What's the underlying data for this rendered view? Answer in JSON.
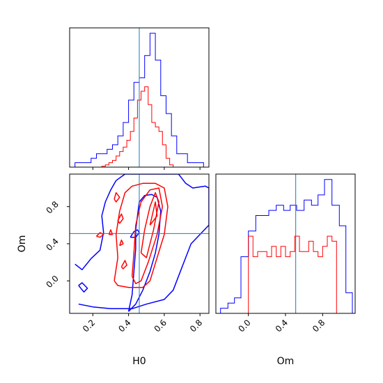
{
  "chart_data": {
    "type": "corner",
    "parameters": [
      "H0",
      "Om"
    ],
    "truth": {
      "H0": 0.46,
      "Om": 0.51
    },
    "colors": {
      "series_a": "#0000ff",
      "series_b": "#ff0000",
      "truth_line": "#1f77b4"
    },
    "panels": {
      "H0_hist": {
        "xlim": [
          0.07,
          0.85
        ],
        "ticks": [
          0.2,
          0.4,
          0.6,
          0.8
        ],
        "bin_edges": [
          0.07,
          0.1,
          0.13,
          0.16,
          0.19,
          0.22,
          0.25,
          0.28,
          0.31,
          0.34,
          0.37,
          0.4,
          0.43,
          0.46,
          0.49,
          0.52,
          0.55,
          0.58,
          0.61,
          0.64,
          0.67,
          0.7,
          0.73,
          0.76,
          0.79,
          0.82,
          0.85
        ],
        "series_a_counts": [
          0,
          1,
          1,
          1,
          2,
          3,
          3,
          4,
          5,
          7,
          10,
          15,
          19,
          20,
          25,
          30,
          24,
          16,
          12,
          7,
          3,
          3,
          1,
          1,
          1,
          0
        ],
        "bin_edges_b": [
          0.25,
          0.27,
          0.29,
          0.31,
          0.33,
          0.35,
          0.37,
          0.39,
          0.41,
          0.43,
          0.45,
          0.47,
          0.49,
          0.51,
          0.53,
          0.55,
          0.57,
          0.59,
          0.61,
          0.63,
          0.65
        ],
        "series_b_counts": [
          0.2,
          0.5,
          1,
          1.5,
          2.5,
          3.5,
          4.5,
          6,
          8,
          11,
          15,
          17,
          18,
          14,
          10,
          9,
          8,
          5,
          2,
          0.5
        ]
      },
      "Om_hist": {
        "xlim": [
          -0.35,
          1.15
        ],
        "ticks": [
          0.0,
          0.4,
          0.8
        ],
        "bin_edges": [
          -0.3,
          -0.22,
          -0.15,
          -0.08,
          0.0,
          0.08,
          0.15,
          0.22,
          0.3,
          0.38,
          0.45,
          0.52,
          0.6,
          0.68,
          0.75,
          0.82,
          0.9,
          0.98,
          1.05,
          1.12
        ],
        "series_a_counts": [
          1,
          2,
          3,
          11,
          16,
          19,
          19,
          20,
          21,
          20,
          21,
          20,
          22,
          21,
          23,
          26,
          21,
          17,
          4
        ],
        "bin_edges_b": [
          0.0,
          0.05,
          0.1,
          0.15,
          0.2,
          0.25,
          0.3,
          0.35,
          0.4,
          0.45,
          0.5,
          0.55,
          0.6,
          0.65,
          0.7,
          0.75,
          0.8,
          0.85,
          0.9,
          0.95,
          1.0
        ],
        "series_b_counts": [
          15,
          11,
          12,
          12,
          11,
          13,
          11,
          13,
          11,
          12,
          15,
          12,
          12,
          14,
          12,
          11,
          13,
          15,
          14,
          0
        ]
      },
      "H0_Om_contours": {
        "xlim": [
          0.07,
          0.85
        ],
        "ylim": [
          -0.35,
          1.15
        ],
        "xticks": [
          0.2,
          0.4,
          0.6,
          0.8
        ],
        "yticks": [
          0.0,
          0.4,
          0.8
        ],
        "series_a_levels": [
          [
            [
              0.4,
              -0.33
            ],
            [
              0.42,
              -0.15
            ],
            [
              0.43,
              0.1
            ],
            [
              0.44,
              0.35
            ],
            [
              0.44,
              0.55
            ],
            [
              0.45,
              0.7
            ],
            [
              0.46,
              0.85
            ],
            [
              0.49,
              0.92
            ],
            [
              0.53,
              0.93
            ],
            [
              0.56,
              0.9
            ],
            [
              0.58,
              0.75
            ],
            [
              0.57,
              0.5
            ],
            [
              0.55,
              0.3
            ],
            [
              0.52,
              0.1
            ],
            [
              0.48,
              -0.1
            ],
            [
              0.44,
              -0.25
            ],
            [
              0.4,
              -0.33
            ]
          ],
          [
            [
              0.1,
              0.18
            ],
            [
              0.14,
              0.12
            ],
            [
              0.19,
              0.24
            ],
            [
              0.24,
              0.33
            ],
            [
              0.26,
              0.52
            ],
            [
              0.25,
              0.7
            ],
            [
              0.27,
              0.85
            ],
            [
              0.3,
              0.98
            ],
            [
              0.33,
              1.08
            ],
            [
              0.38,
              1.15
            ],
            [
              0.68,
              1.15
            ],
            [
              0.72,
              1.05
            ],
            [
              0.76,
              1.0
            ],
            [
              0.83,
              1.02
            ],
            [
              0.85,
              1.0
            ],
            [
              0.85,
              0.6
            ],
            [
              0.75,
              0.4
            ],
            [
              0.7,
              0.15
            ],
            [
              0.65,
              -0.1
            ],
            [
              0.6,
              -0.2
            ],
            [
              0.5,
              -0.25
            ],
            [
              0.42,
              -0.3
            ],
            [
              0.3,
              -0.3
            ],
            [
              0.2,
              -0.28
            ],
            [
              0.12,
              -0.25
            ]
          ],
          [
            [
              0.12,
              -0.05
            ],
            [
              0.15,
              -0.12
            ],
            [
              0.17,
              -0.08
            ],
            [
              0.14,
              -0.02
            ],
            [
              0.12,
              -0.05
            ]
          ],
          [
            [
              0.41,
              0.47
            ],
            [
              0.43,
              0.53
            ],
            [
              0.45,
              0.55
            ],
            [
              0.46,
              0.52
            ],
            [
              0.44,
              0.47
            ],
            [
              0.41,
              0.47
            ]
          ]
        ],
        "series_b_levels": [
          [
            [
              0.32,
              0.0
            ],
            [
              0.34,
              0.25
            ],
            [
              0.33,
              0.5
            ],
            [
              0.35,
              0.75
            ],
            [
              0.38,
              0.95
            ],
            [
              0.42,
              1.02
            ],
            [
              0.48,
              1.05
            ],
            [
              0.55,
              1.05
            ],
            [
              0.6,
              1.0
            ],
            [
              0.62,
              0.8
            ],
            [
              0.6,
              0.5
            ],
            [
              0.56,
              0.25
            ],
            [
              0.52,
              0.0
            ],
            [
              0.48,
              -0.07
            ],
            [
              0.4,
              -0.07
            ],
            [
              0.34,
              -0.05
            ],
            [
              0.32,
              0.0
            ]
          ],
          [
            [
              0.42,
              0.05
            ],
            [
              0.43,
              0.3
            ],
            [
              0.44,
              0.6
            ],
            [
              0.47,
              0.85
            ],
            [
              0.52,
              0.98
            ],
            [
              0.57,
              1.0
            ],
            [
              0.59,
              0.8
            ],
            [
              0.56,
              0.5
            ],
            [
              0.51,
              0.2
            ],
            [
              0.47,
              0.0
            ],
            [
              0.44,
              -0.03
            ],
            [
              0.42,
              0.05
            ]
          ],
          [
            [
              0.47,
              0.3
            ],
            [
              0.49,
              0.55
            ],
            [
              0.52,
              0.8
            ],
            [
              0.55,
              0.95
            ],
            [
              0.57,
              0.85
            ],
            [
              0.54,
              0.55
            ],
            [
              0.5,
              0.25
            ],
            [
              0.47,
              0.3
            ]
          ],
          [
            [
              0.52,
              0.6
            ],
            [
              0.55,
              0.85
            ],
            [
              0.56,
              0.7
            ],
            [
              0.52,
              0.6
            ]
          ],
          [
            [
              0.32,
              0.88
            ],
            [
              0.33,
              0.95
            ],
            [
              0.35,
              0.9
            ],
            [
              0.33,
              0.85
            ],
            [
              0.32,
              0.88
            ]
          ],
          [
            [
              0.34,
              0.65
            ],
            [
              0.36,
              0.72
            ],
            [
              0.37,
              0.67
            ],
            [
              0.35,
              0.62
            ],
            [
              0.34,
              0.65
            ]
          ],
          [
            [
              0.35,
              0.38
            ],
            [
              0.36,
              0.44
            ],
            [
              0.37,
              0.4
            ],
            [
              0.35,
              0.38
            ]
          ],
          [
            [
              0.22,
              0.48
            ],
            [
              0.24,
              0.52
            ],
            [
              0.26,
              0.5
            ],
            [
              0.24,
              0.47
            ],
            [
              0.22,
              0.48
            ]
          ],
          [
            [
              0.29,
              0.5
            ],
            [
              0.3,
              0.55
            ],
            [
              0.31,
              0.5
            ],
            [
              0.29,
              0.5
            ]
          ],
          [
            [
              0.36,
              0.15
            ],
            [
              0.38,
              0.22
            ],
            [
              0.39,
              0.17
            ],
            [
              0.37,
              0.13
            ],
            [
              0.36,
              0.15
            ]
          ]
        ]
      }
    },
    "xlabel_left": "H0",
    "xlabel_right": "Om",
    "ylabel": "Om"
  }
}
